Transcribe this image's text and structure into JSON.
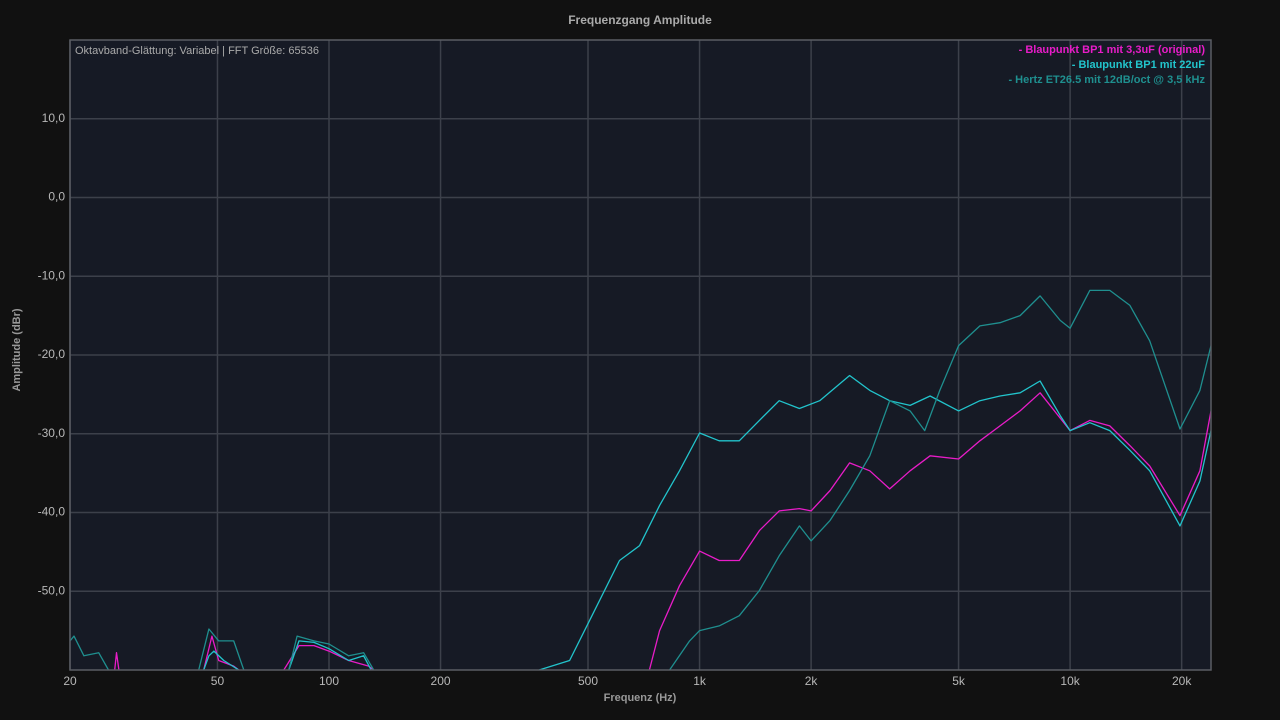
{
  "chart_data": {
    "type": "line",
    "title": "Frequenzgang Amplitude",
    "annotation": "Oktavband-Glättung: Variabel | FFT Größe: 65536",
    "xlabel": "Frequenz (Hz)",
    "ylabel": "Amplitude (dBr)",
    "xscale": "log",
    "grid": true,
    "legend": "top-right",
    "xlim": [
      20,
      24000
    ],
    "ylim": [
      -60,
      20
    ],
    "xticks": [
      20,
      50,
      100,
      200,
      500,
      {
        "value": 1000,
        "label": "1k"
      },
      {
        "value": 2000,
        "label": "2k"
      },
      {
        "value": 5000,
        "label": "5k"
      },
      {
        "value": 10000,
        "label": "10k"
      },
      {
        "value": 20000,
        "label": "20k"
      }
    ],
    "yticks": [
      {
        "value": 10,
        "label": "10,0"
      },
      {
        "value": 0,
        "label": "0,0"
      },
      {
        "value": -10,
        "label": "-10,0"
      },
      {
        "value": -20,
        "label": "-20,0"
      },
      {
        "value": -30,
        "label": "-30,0"
      },
      {
        "value": -40,
        "label": "-40,0"
      },
      {
        "value": -50,
        "label": "-50,0"
      }
    ],
    "series": [
      {
        "name": "- Blaupunkt BP1 mit 3,3uF (original)",
        "color": "#e81cc8",
        "x": [
          26.4,
          26.7,
          27.1,
          35,
          45.9,
          48.3,
          50.4,
          55.3,
          57.1,
          65,
          75.5,
          83.0,
          91.1,
          100,
          113,
          128,
          132,
          400,
          732,
          780,
          883,
          1000,
          1130,
          1280,
          1450,
          1640,
          1860,
          2000,
          2250,
          2540,
          2880,
          3260,
          3700,
          4190,
          5000,
          5710,
          6470,
          7330,
          8300,
          10000,
          11300,
          12800,
          14500,
          16400,
          19800,
          22400,
          24000
        ],
        "values": [
          -60,
          -57.8,
          -60,
          null,
          -60,
          -55.7,
          -58.8,
          -59.5,
          -60,
          null,
          -60,
          -56.9,
          -56.9,
          -57.6,
          -58.8,
          -59.5,
          -60,
          null,
          -60,
          -55.0,
          -49.3,
          -44.9,
          -46.1,
          -46.1,
          -42.3,
          -39.8,
          -39.5,
          -39.8,
          -37.2,
          -33.7,
          -34.7,
          -37.0,
          -34.7,
          -32.8,
          -33.2,
          -30.9,
          -29.0,
          -27.1,
          -24.8,
          -29.6,
          -28.3,
          -29.0,
          -31.5,
          -34.1,
          -40.4,
          -34.7,
          -27.1
        ]
      },
      {
        "name": "- Blaupunkt BP1 mit 22uF",
        "color": "#22c4cc",
        "x": [
          45.9,
          47.4,
          48.9,
          52.0,
          57.1,
          65,
          77.9,
          83.0,
          91.1,
          100,
          113,
          124,
          130,
          200,
          369,
          446,
          505,
          608,
          689,
          780,
          883,
          1000,
          1130,
          1280,
          1450,
          1640,
          1860,
          2110,
          2540,
          2880,
          3260,
          3700,
          4190,
          5000,
          5710,
          6470,
          7330,
          8300,
          9400,
          10000,
          11300,
          12800,
          14500,
          16400,
          19800,
          22400,
          24000
        ],
        "values": [
          -60,
          -58.2,
          -57.6,
          -58.8,
          -60,
          null,
          -60,
          -56.3,
          -56.5,
          -57.3,
          -58.8,
          -58.2,
          -60,
          null,
          -60,
          -58.8,
          -53.7,
          -46.1,
          -44.2,
          -39.1,
          -34.7,
          -29.9,
          -30.9,
          -30.9,
          -28.3,
          -25.8,
          -26.8,
          -25.8,
          -22.6,
          -24.5,
          -25.8,
          -26.4,
          -25.2,
          -27.1,
          -25.8,
          -25.2,
          -24.8,
          -23.3,
          -27.7,
          -29.6,
          -28.6,
          -29.6,
          -32.1,
          -34.7,
          -41.7,
          -36.0,
          -29.6
        ]
      },
      {
        "name": "- Hertz ET26.5 mit 12dB/oct @ 3,5 kHz",
        "color": "#1f8f8f",
        "x": [
          20,
          20.5,
          21.8,
          23.9,
          25.4,
          35,
          44.5,
          47.4,
          50.4,
          55.3,
          58.9,
          68,
          77.9,
          82.0,
          91.1,
          100,
          113,
          124,
          132,
          300,
          830,
          940,
          1000,
          1130,
          1280,
          1450,
          1640,
          1860,
          2000,
          2250,
          2540,
          2880,
          3260,
          3700,
          4050,
          4450,
          5000,
          5710,
          6470,
          7330,
          8300,
          9400,
          10000,
          11300,
          12800,
          14500,
          16400,
          19800,
          22400,
          24000
        ],
        "values": [
          -56.3,
          -55.7,
          -58.2,
          -57.8,
          -60,
          null,
          -60,
          -54.8,
          -56.3,
          -56.3,
          -60,
          null,
          -60,
          -55.7,
          -56.3,
          -56.7,
          -58.2,
          -57.8,
          -60,
          null,
          -60,
          -56.3,
          -55.0,
          -54.4,
          -53.1,
          -49.9,
          -45.5,
          -41.7,
          -43.6,
          -41.0,
          -37.2,
          -32.8,
          -25.8,
          -27.1,
          -29.6,
          -24.5,
          -18.8,
          -16.3,
          -15.9,
          -15.0,
          -12.5,
          -15.6,
          -16.6,
          -11.8,
          -11.8,
          -13.7,
          -18.2,
          -29.4,
          -24.5,
          -18.8
        ]
      }
    ]
  }
}
